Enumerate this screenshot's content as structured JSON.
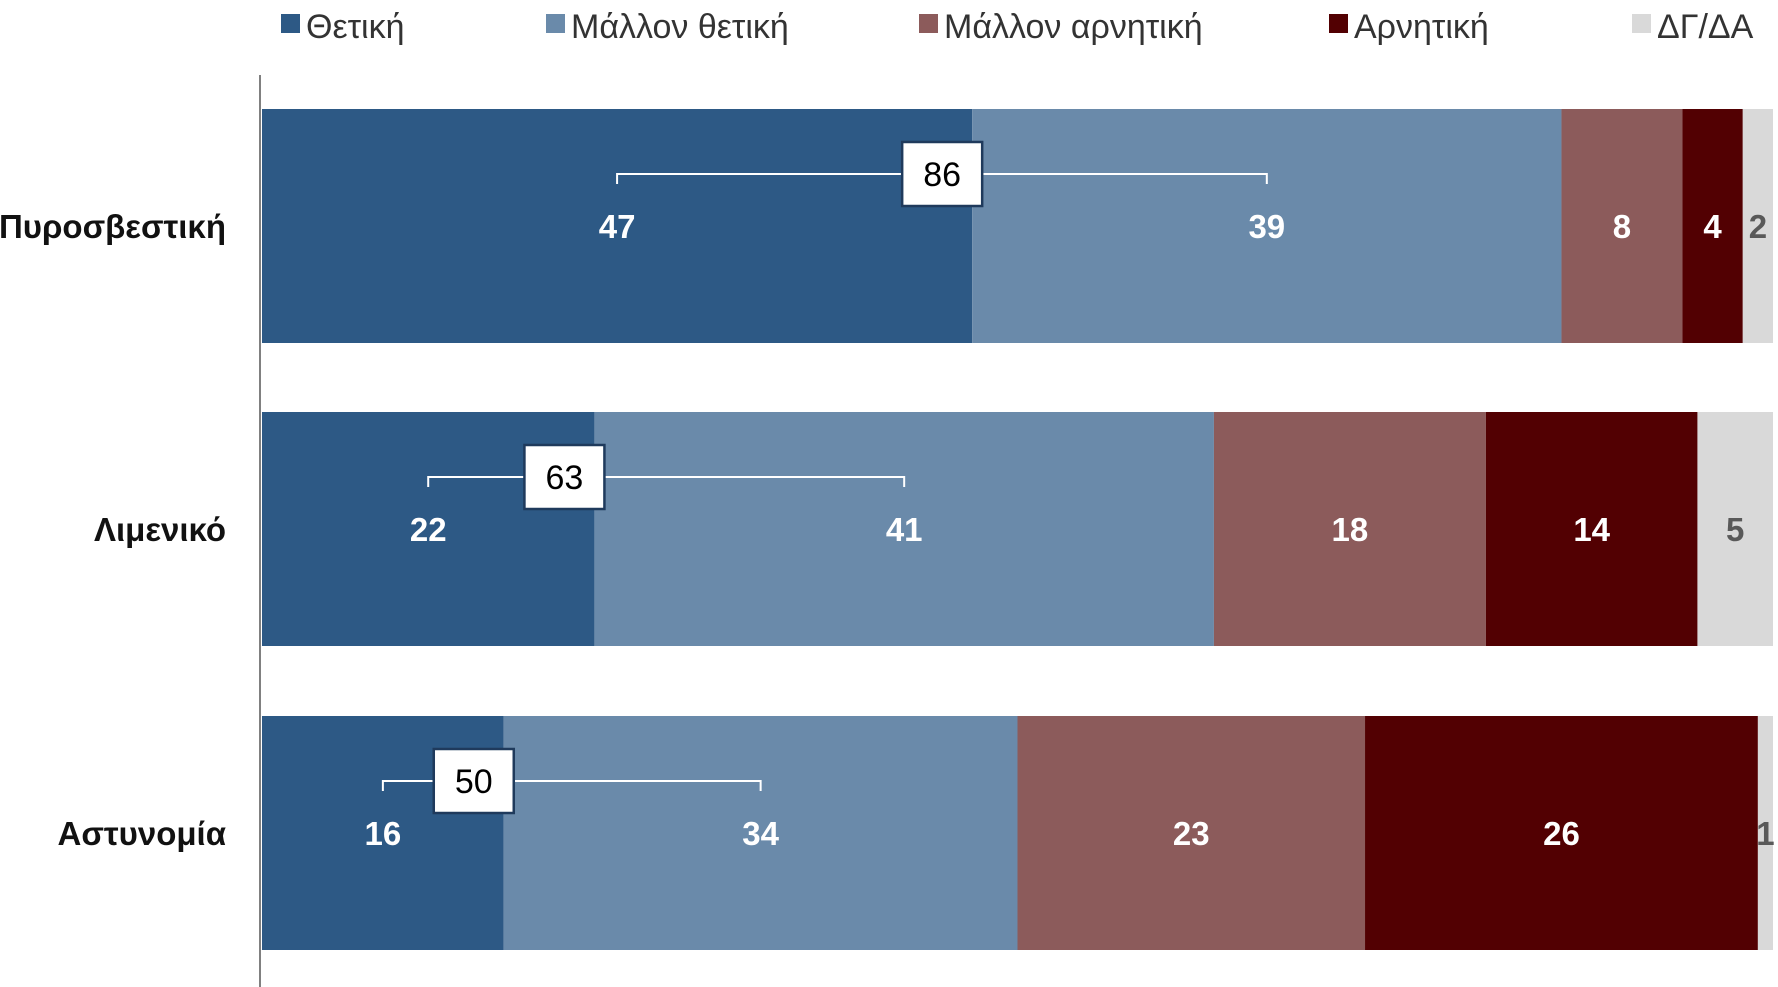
{
  "chart_data": {
    "type": "bar",
    "orientation": "horizontal",
    "stacked": true,
    "categories": [
      "Πυροσβεστική",
      "Λιμενικό",
      "Αστυνομία"
    ],
    "series": [
      {
        "name": "Θετική",
        "color": "#2d5985",
        "label_color": "#ffffff",
        "values": [
          47,
          22,
          16
        ]
      },
      {
        "name": "Μάλλον θετική",
        "color": "#6a8aaa",
        "label_color": "#ffffff",
        "values": [
          39,
          41,
          34
        ]
      },
      {
        "name": "Μάλλον αρνητική",
        "color": "#8c5b5b",
        "label_color": "#ffffff",
        "values": [
          8,
          18,
          23
        ]
      },
      {
        "name": "Αρνητική",
        "color": "#520002",
        "label_color": "#ffffff",
        "values": [
          4,
          14,
          26
        ]
      },
      {
        "name": "ΔΓ/ΔΑ",
        "color": "#d9d9d9",
        "label_color": "#595959",
        "values": [
          2,
          5,
          1
        ]
      }
    ],
    "positive_totals": [
      86,
      63,
      50
    ],
    "xlim": [
      0,
      100
    ],
    "grid": false,
    "legend_position": "top"
  }
}
